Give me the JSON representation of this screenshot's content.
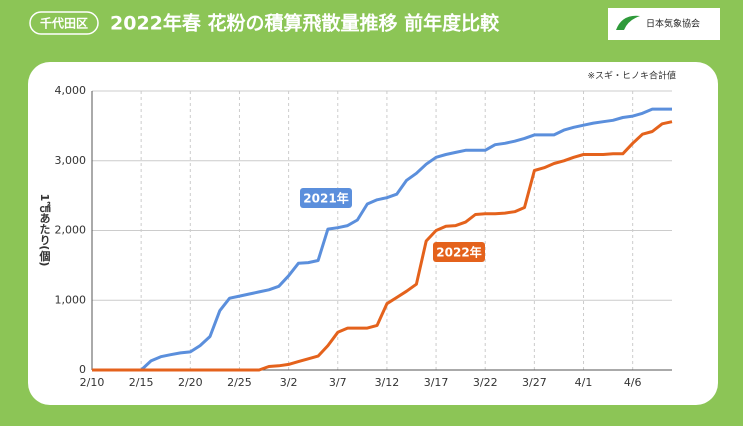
{
  "header": {
    "badge": "千代田区",
    "logo": "日本気象協会"
  },
  "chart_data": {
    "type": "line",
    "title": "2022年春 花粉の積算飛散量推移 前年度比較",
    "note": "※スギ・ヒノキ合計値",
    "y_label": "1㎠あたり(個)",
    "categories": [
      "2/10",
      null,
      null,
      null,
      null,
      "2/15",
      null,
      null,
      null,
      null,
      "2/20",
      null,
      null,
      null,
      null,
      "2/25",
      null,
      null,
      null,
      null,
      "3/2",
      null,
      null,
      null,
      null,
      "3/7",
      null,
      null,
      null,
      null,
      "3/12",
      null,
      null,
      null,
      null,
      "3/17",
      null,
      null,
      null,
      null,
      "3/22",
      null,
      null,
      null,
      null,
      "3/27",
      null,
      null,
      null,
      null,
      "4/1",
      null,
      null,
      null,
      null,
      "4/6",
      null,
      null,
      null,
      null
    ],
    "series": [
      {
        "name": "2021年",
        "color": "#5b8fdc",
        "values": [
          0,
          0,
          0,
          0,
          0,
          0,
          130,
          190,
          220,
          245,
          260,
          350,
          480,
          850,
          1030,
          1060,
          1090,
          1120,
          1150,
          1200,
          1350,
          1530,
          1540,
          1570,
          2020,
          2040,
          2070,
          2150,
          2380,
          2440,
          2470,
          2520,
          2720,
          2820,
          2950,
          3050,
          3090,
          3120,
          3150,
          3150,
          3150,
          3230,
          3250,
          3280,
          3320,
          3370,
          3370,
          3370,
          3440,
          3480,
          3510,
          3540,
          3560,
          3580,
          3620,
          3640,
          3680,
          3740,
          3740,
          3740
        ]
      },
      {
        "name": "2022年",
        "color": "#e4621c",
        "values": [
          0,
          0,
          0,
          0,
          0,
          0,
          0,
          0,
          0,
          0,
          0,
          0,
          0,
          0,
          0,
          0,
          0,
          0,
          50,
          60,
          80,
          120,
          160,
          200,
          350,
          540,
          600,
          600,
          600,
          640,
          950,
          1040,
          1130,
          1230,
          1850,
          2000,
          2060,
          2070,
          2120,
          2230,
          2240,
          2240,
          2250,
          2270,
          2330,
          2860,
          2900,
          2960,
          3000,
          3050,
          3090,
          3090,
          3090,
          3100,
          3100,
          3250,
          3380,
          3420,
          3530,
          3560
        ]
      }
    ],
    "ylim": [
      0,
      4000
    ],
    "yticks": [
      0,
      {
        "value": 1000,
        "label": "1,000"
      },
      {
        "value": 2000,
        "label": "2,000"
      },
      {
        "value": 3000,
        "label": "3,000"
      },
      {
        "value": 4000,
        "label": "4,000"
      }
    ],
    "grid": true
  }
}
